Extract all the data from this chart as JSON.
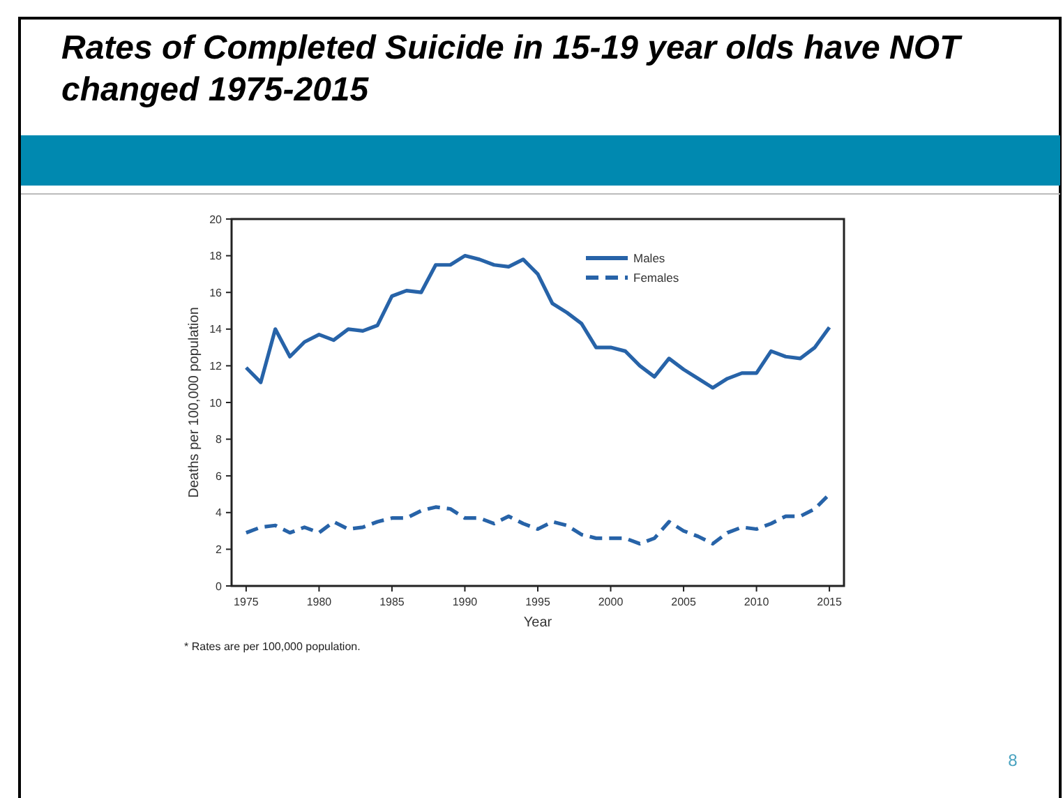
{
  "chart_data": {
    "type": "line",
    "title": "Rates of Completed Suicide in 15-19 year olds have NOT changed 1975-2015",
    "xlabel": "Year",
    "ylabel": "Deaths per 100,000 population",
    "annotations": [
      "* Rates are per 100,000 population.",
      "8"
    ],
    "x": [
      1975,
      1976,
      1977,
      1978,
      1979,
      1980,
      1981,
      1982,
      1983,
      1984,
      1985,
      1986,
      1987,
      1988,
      1989,
      1990,
      1991,
      1992,
      1993,
      1994,
      1995,
      1996,
      1997,
      1998,
      1999,
      2000,
      2001,
      2002,
      2003,
      2004,
      2005,
      2006,
      2007,
      2008,
      2009,
      2010,
      2011,
      2012,
      2013,
      2014,
      2015
    ],
    "series": [
      {
        "name": "Males",
        "color": "#2763a8",
        "line_style": "solid",
        "values": [
          11.9,
          11.1,
          14.0,
          12.5,
          13.3,
          13.7,
          13.4,
          14.0,
          13.9,
          14.2,
          15.8,
          16.1,
          16.0,
          17.5,
          17.5,
          18.0,
          17.8,
          17.5,
          17.4,
          17.8,
          17.0,
          15.4,
          14.9,
          14.3,
          13.0,
          13.0,
          12.8,
          12.0,
          11.4,
          12.4,
          11.8,
          11.3,
          10.8,
          11.3,
          11.6,
          11.6,
          12.8,
          12.5,
          12.4,
          13.0,
          14.1
        ]
      },
      {
        "name": "Females",
        "color": "#2763a8",
        "line_style": "dashed",
        "values": [
          2.9,
          3.2,
          3.3,
          2.9,
          3.2,
          2.9,
          3.5,
          3.1,
          3.2,
          3.5,
          3.7,
          3.7,
          4.1,
          4.3,
          4.2,
          3.7,
          3.7,
          3.4,
          3.8,
          3.4,
          3.1,
          3.5,
          3.3,
          2.8,
          2.6,
          2.6,
          2.6,
          2.3,
          2.6,
          3.5,
          3.0,
          2.7,
          2.3,
          2.9,
          3.2,
          3.1,
          3.4,
          3.8,
          3.8,
          4.2,
          5.0
        ]
      }
    ],
    "xlim": [
      1974,
      2016
    ],
    "xticks": [
      1975,
      1980,
      1985,
      1990,
      1995,
      2000,
      2005,
      2010,
      2015
    ],
    "ylim": [
      0,
      20
    ],
    "yticks": [
      0,
      2,
      4,
      6,
      8,
      10,
      12,
      14,
      16,
      18,
      20
    ],
    "grid": false,
    "legend": "top right",
    "marker": "none"
  }
}
